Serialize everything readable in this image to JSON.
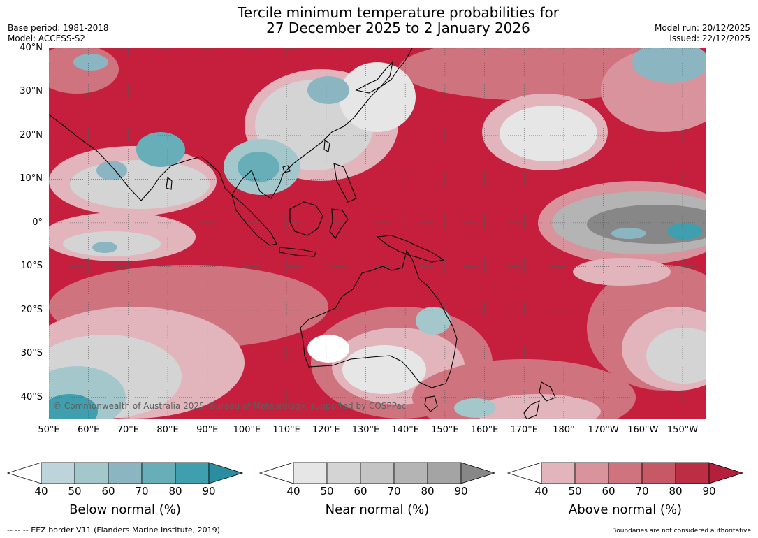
{
  "title": {
    "line1": "Tercile minimum temperature probabilities for",
    "line2": "27 December 2025 to 2 January 2026"
  },
  "meta_left": {
    "base_period": "Base period: 1981-2018",
    "model": "Model: ACCESS-S2"
  },
  "meta_right": {
    "model_run": "Model run: 20/12/2025",
    "issued": "Issued: 22/12/2025"
  },
  "map": {
    "copyright": "© Commonwealth of Australia 2025, Bureau of Meteorology, supported by COSPPac",
    "lat_labels": [
      "40°N",
      "30°N",
      "20°N",
      "10°N",
      "0°",
      "10°S",
      "20°S",
      "30°S",
      "40°S"
    ],
    "lon_labels": [
      "50°E",
      "60°E",
      "70°E",
      "80°E",
      "90°E",
      "100°E",
      "110°E",
      "120°E",
      "130°E",
      "140°E",
      "150°E",
      "160°E",
      "170°E",
      "180°",
      "170°W",
      "160°W",
      "150°W"
    ],
    "extent": {
      "lon_min": 50,
      "lon_max": 216,
      "lat_min": -45,
      "lat_max": 40
    }
  },
  "colorbars": [
    {
      "label": "Below normal (%)",
      "ticks": [
        "40",
        "50",
        "60",
        "70",
        "80",
        "90"
      ],
      "colors": [
        "#ffffff",
        "#bdd4db",
        "#a4c7cc",
        "#8ab5c1",
        "#67aeb8",
        "#3f9fae",
        "#2b8ea0"
      ]
    },
    {
      "label": "Near normal (%)",
      "ticks": [
        "40",
        "50",
        "60",
        "70",
        "80",
        "90"
      ],
      "colors": [
        "#ffffff",
        "#e6e6e6",
        "#d4d4d4",
        "#c4c4c4",
        "#b4b4b4",
        "#a4a4a4",
        "#878787"
      ]
    },
    {
      "label": "Above normal (%)",
      "ticks": [
        "40",
        "50",
        "60",
        "70",
        "80",
        "90"
      ],
      "colors": [
        "#ffffff",
        "#e2b5bd",
        "#d8939d",
        "#cf737f",
        "#c75866",
        "#bb2e44",
        "#b41f3b"
      ]
    }
  ],
  "footer": {
    "eez": "--  --  -- EEZ border V11 (Flanders Marine Institute, 2019).",
    "disclaimer": "Boundaries are not considered authoritative"
  },
  "palette": {
    "above_dark": "#b41f3b",
    "above_mid": "#c75866",
    "above_light": "#e2b5bd",
    "near": "#d4d4d4",
    "near_dark": "#878787",
    "below": "#67aeb8"
  }
}
